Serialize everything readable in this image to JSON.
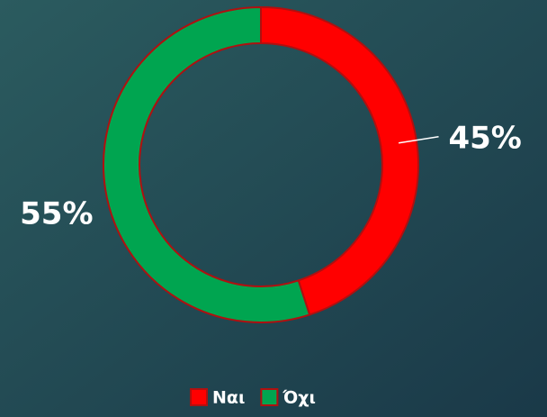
{
  "chart_data": {
    "type": "pie",
    "categories": [
      "Ναι",
      "Όχι"
    ],
    "values": [
      45,
      55
    ],
    "value_labels": [
      "45%",
      "55%"
    ],
    "colors": [
      "#ff0000",
      "#00a550"
    ],
    "legend": "bottom"
  }
}
